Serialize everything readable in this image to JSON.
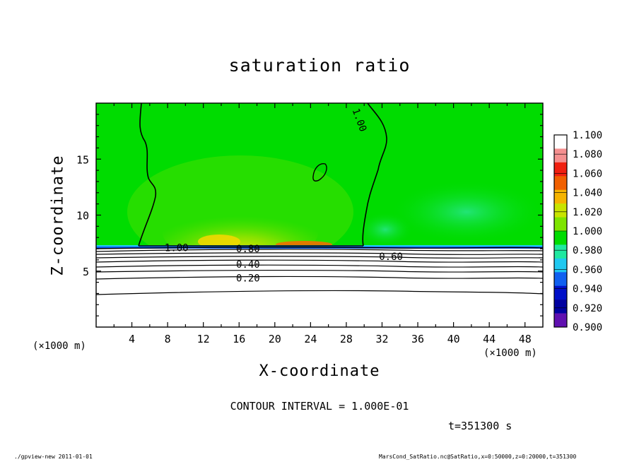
{
  "chart_data": {
    "type": "contour",
    "title": "saturation ratio",
    "xlabel": "X-coordinate",
    "ylabel": "Z-coordinate",
    "x_unit": "(×1000 m)",
    "z_unit": "(×1000 m)",
    "xlim": [
      0,
      50
    ],
    "ylim": [
      0,
      20
    ],
    "x_ticks": [
      "4",
      "8",
      "12",
      "16",
      "20",
      "24",
      "28",
      "32",
      "36",
      "40",
      "44",
      "48"
    ],
    "y_ticks": [
      "5",
      "10",
      "15"
    ],
    "colorbar": {
      "levels": [
        "1.100",
        "1.080",
        "1.060",
        "1.040",
        "1.020",
        "1.000",
        "0.980",
        "0.960",
        "0.940",
        "0.920",
        "0.900"
      ],
      "colors": [
        "#ffffff",
        "#f59090",
        "#f02010",
        "#f06000",
        "#f5b400",
        "#c8e400",
        "#7ee400",
        "#00dc00",
        "#20e8a0",
        "#20c8f0",
        "#1060f0",
        "#0010c8",
        "#0000a0",
        "#6010b0"
      ]
    },
    "contour_labels": [
      {
        "text": "1.00",
        "x": 29.5,
        "z": 18.5
      },
      {
        "text": "1.00",
        "x": 9.0,
        "z": 7.1
      },
      {
        "text": "0.80",
        "x": 17.0,
        "z": 7.0
      },
      {
        "text": "0.60",
        "x": 33.0,
        "z": 6.3
      },
      {
        "text": "0.40",
        "x": 17.0,
        "z": 5.6
      },
      {
        "text": "0.20",
        "x": 17.0,
        "z": 4.4
      }
    ],
    "contour_interval": "CONTOUR INTERVAL = 1.000E-01",
    "time": "t=351300 s"
  },
  "footer": {
    "left": "./gpview-new  2011-01-01",
    "right": "MarsCond_SatRatio.nc@SatRatio,x=0:50000,z=0:20000,t=351300"
  }
}
